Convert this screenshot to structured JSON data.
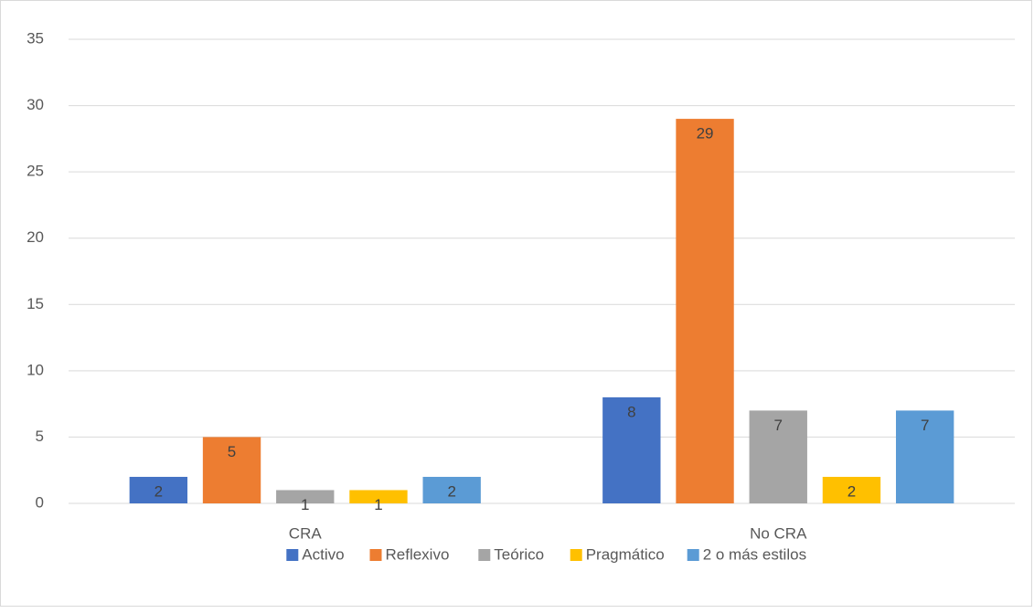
{
  "chart_data": {
    "type": "bar",
    "categories": [
      "CRA",
      "No CRA"
    ],
    "series": [
      {
        "name": "Activo",
        "color": "#4472c4",
        "values": [
          2,
          8
        ]
      },
      {
        "name": "Reflexivo",
        "color": "#ed7d31",
        "values": [
          5,
          29
        ]
      },
      {
        "name": "Teórico",
        "color": "#a5a5a5",
        "values": [
          1,
          7
        ]
      },
      {
        "name": "Pragmático",
        "color": "#ffc000",
        "values": [
          1,
          2
        ]
      },
      {
        "name": "2 o más estilos",
        "color": "#5b9bd5",
        "values": [
          2,
          7
        ]
      }
    ],
    "ylim": [
      0,
      35
    ],
    "yticks": [
      0,
      5,
      10,
      15,
      20,
      25,
      30,
      35
    ],
    "grid": true,
    "legend": "bottom"
  }
}
